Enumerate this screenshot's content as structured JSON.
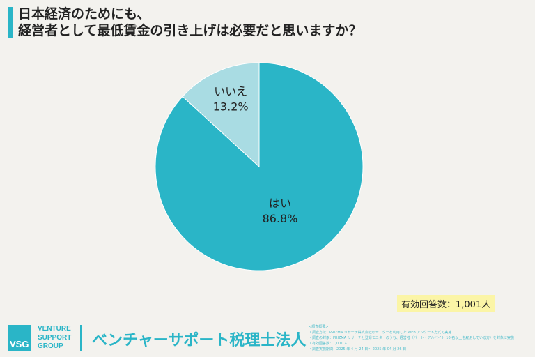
{
  "title_lines": [
    "日本経済のためにも、",
    "経営者として最低賃金の引き上げは必要だと思いますか？"
  ],
  "chart_data": {
    "type": "pie",
    "title": "日本経済のためにも、経営者として最低賃金の引き上げは必要だと思いますか？",
    "slices": [
      {
        "label": "はい",
        "value": 86.8,
        "display": "86.8%",
        "color": "#2ab5c7"
      },
      {
        "label": "いいえ",
        "value": 13.2,
        "display": "13.2%",
        "color": "#a9dce3"
      }
    ],
    "start": "top",
    "legend": "none"
  },
  "respondents": "有効回答数：1,001人",
  "logo": {
    "mark": "VSG",
    "lines": [
      "VENTURE",
      "SUPPORT",
      "GROUP"
    ]
  },
  "firm_name": "ベンチャーサポート税理士法人",
  "notes": [
    "<調査概要>",
    "・調査方法：PRIZMA リサーチ株式会社のモニターを利用した WEB アンケート方式で実施",
    "・調査の対象：PRIZMA リサーチ社登録モニターのうち、経営者（パート・アルバイト 10 名以上を雇用している方）を対象に実施",
    "・有効回答数：1,001 人",
    "・調査実施期間：2025 年 4 月 24 日～ 2025 年 04 月 26 日"
  ]
}
